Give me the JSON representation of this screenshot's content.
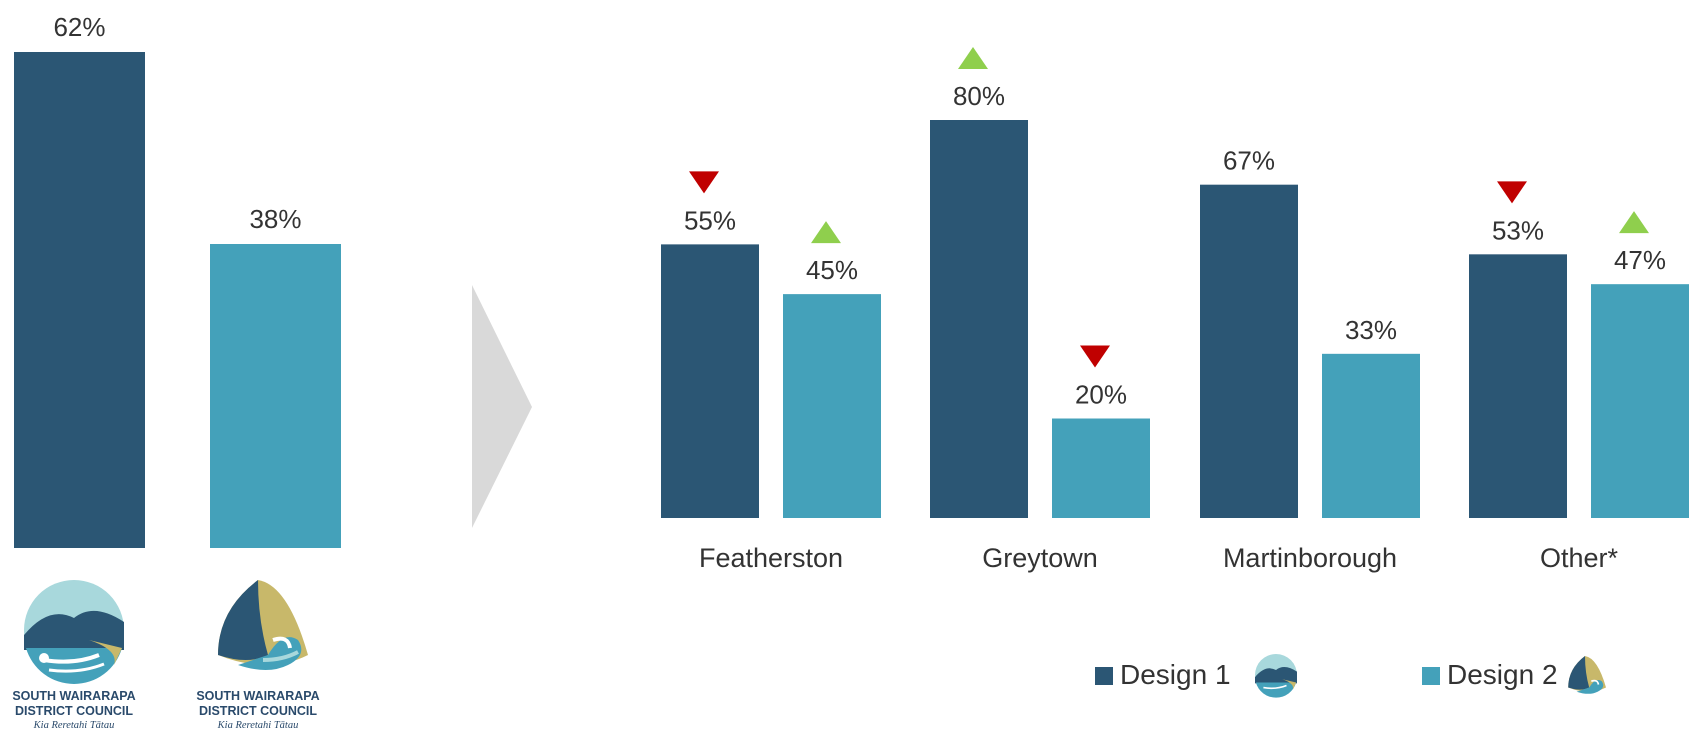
{
  "colors": {
    "design1": "#2b5674",
    "design2": "#44a1ba",
    "up": "#8fcf4d",
    "down": "#c00000",
    "arrow": "#d9d9d9",
    "text": "#333333"
  },
  "chart_data": [
    {
      "type": "bar",
      "categories": [
        "Design 1",
        "Design 2"
      ],
      "series": [
        {
          "values": [
            62,
            38
          ]
        }
      ],
      "value_labels": [
        "62%",
        "38%"
      ],
      "ylim": [
        0,
        62
      ]
    },
    {
      "type": "bar",
      "categories": [
        "Featherston",
        "Greytown",
        "Martinborough",
        "Other*"
      ],
      "series": [
        {
          "name": "Design 1",
          "values": [
            55,
            80,
            67,
            53
          ],
          "labels": [
            "55%",
            "80%",
            "67%",
            "53%"
          ],
          "indicators": [
            "down",
            "up",
            "none",
            "down"
          ]
        },
        {
          "name": "Design 2",
          "values": [
            45,
            20,
            33,
            47
          ],
          "labels": [
            "45%",
            "20%",
            "33%",
            "47%"
          ],
          "indicators": [
            "up",
            "down",
            "none",
            "up"
          ]
        }
      ],
      "ylim": [
        0,
        80
      ],
      "legend": "bottom-right",
      "indicator_icons": {
        "up": "green-up-triangle-icon",
        "down": "red-down-triangle-icon"
      }
    }
  ],
  "logos": {
    "line1": "SOUTH WAIRARAPA",
    "line2": "DISTRICT COUNCIL",
    "motto": "Kia Reretahi Tātau"
  },
  "icons": {
    "design1_logo": "design-1-logo-icon",
    "design2_logo": "design-2-logo-icon",
    "arrow": "chevron-right-arrow-icon"
  }
}
